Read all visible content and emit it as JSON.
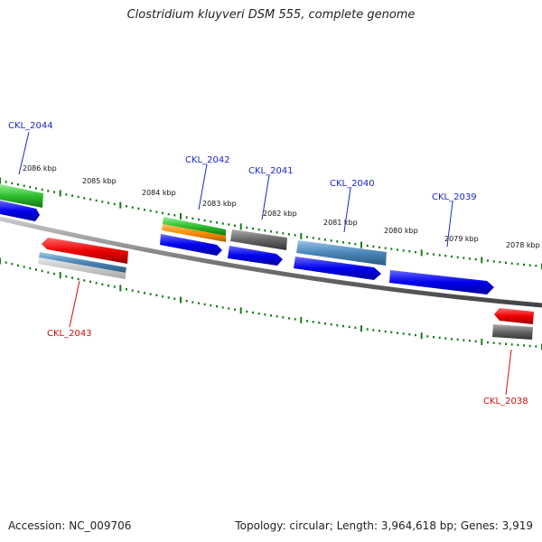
{
  "title": "Clostridium kluyveri DSM 555, complete genome",
  "footer": {
    "accession": "Accession: NC_009706",
    "summary": "Topology: circular; Length: 3,964,618 bp; Genes: 3,919"
  },
  "map": {
    "ticks": [
      "2086 kbp",
      "2085 kbp",
      "2084 kbp",
      "2083 kbp",
      "2082 kbp",
      "2081 kbp",
      "2080 kbp",
      "2079 kbp",
      "2078 kbp"
    ],
    "genes": [
      {
        "name": "CKL_2044",
        "strand": "forward"
      },
      {
        "name": "CKL_2043",
        "strand": "reverse"
      },
      {
        "name": "CKL_2042",
        "strand": "forward"
      },
      {
        "name": "CKL_2041",
        "strand": "forward"
      },
      {
        "name": "CKL_2040",
        "strand": "forward"
      },
      {
        "name": "CKL_2039",
        "strand": "forward"
      },
      {
        "name": "CKL_2038",
        "strand": "reverse"
      }
    ],
    "colors": {
      "cds_forward": "#0000ee",
      "cds_reverse": "#ee0000",
      "gene_green": "#2fbf2f",
      "gene_orange": "#ff8c00",
      "gene_gray": "#666666",
      "gene_steel": "#4a86b8",
      "tick_green": "#1a7a1a",
      "backbone": "#777777"
    }
  }
}
